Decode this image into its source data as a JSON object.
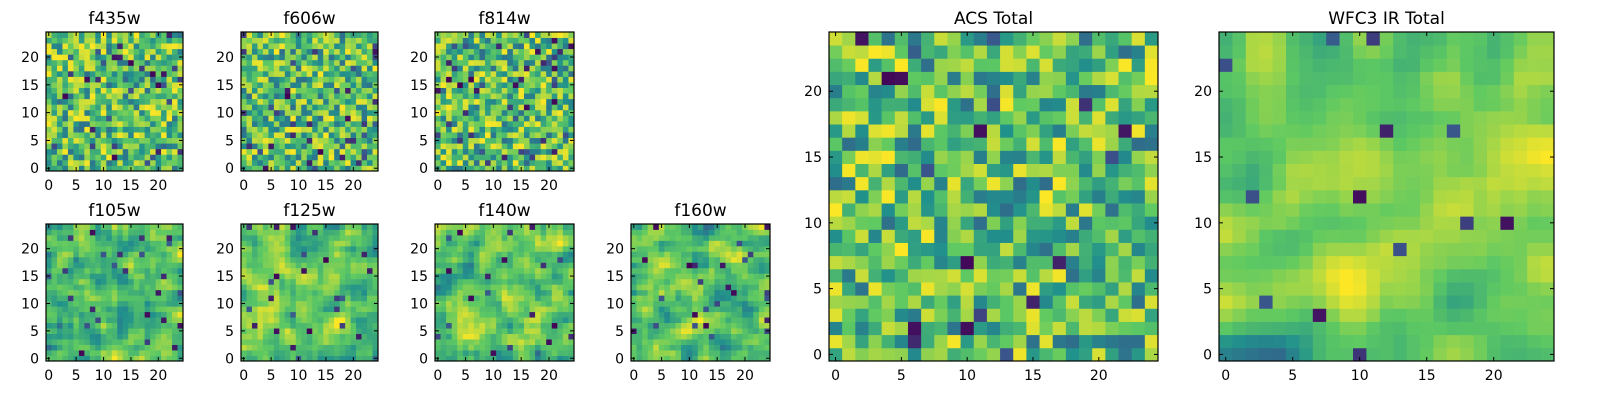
{
  "figure": {
    "colormap": "viridis",
    "colors": [
      "#440154",
      "#3b528b",
      "#21918c",
      "#5ec962",
      "#fde725"
    ]
  },
  "chart_data": [
    {
      "type": "heatmap",
      "title": "f435w",
      "grid_size": 25,
      "xticks": [
        "0",
        "5",
        "10",
        "15",
        "20"
      ],
      "yticks": [
        "0",
        "5",
        "10",
        "15",
        "20"
      ],
      "seed": 11,
      "smooth": 0,
      "dark_fraction": 0.05,
      "value_range": [
        0,
        1
      ]
    },
    {
      "type": "heatmap",
      "title": "f606w",
      "grid_size": 25,
      "xticks": [
        "0",
        "5",
        "10",
        "15",
        "20"
      ],
      "yticks": [
        "0",
        "5",
        "10",
        "15",
        "20"
      ],
      "seed": 23,
      "smooth": 0,
      "dark_fraction": 0.06,
      "value_range": [
        0,
        1
      ]
    },
    {
      "type": "heatmap",
      "title": "f814w",
      "grid_size": 25,
      "xticks": [
        "0",
        "5",
        "10",
        "15",
        "20"
      ],
      "yticks": [
        "0",
        "5",
        "10",
        "15",
        "20"
      ],
      "seed": 37,
      "smooth": 0,
      "dark_fraction": 0.07,
      "value_range": [
        0,
        1
      ]
    },
    {
      "type": "heatmap",
      "title": "f105w",
      "grid_size": 25,
      "xticks": [
        "0",
        "5",
        "10",
        "15",
        "20"
      ],
      "yticks": [
        "0",
        "5",
        "10",
        "15",
        "20"
      ],
      "seed": 41,
      "smooth": 1,
      "dark_fraction": 0.04,
      "value_range": [
        0,
        1
      ]
    },
    {
      "type": "heatmap",
      "title": "f125w",
      "grid_size": 25,
      "xticks": [
        "0",
        "5",
        "10",
        "15",
        "20"
      ],
      "yticks": [
        "0",
        "5",
        "10",
        "15",
        "20"
      ],
      "seed": 53,
      "smooth": 1,
      "dark_fraction": 0.04,
      "value_range": [
        0,
        1
      ]
    },
    {
      "type": "heatmap",
      "title": "f140w",
      "grid_size": 25,
      "xticks": [
        "0",
        "5",
        "10",
        "15",
        "20"
      ],
      "yticks": [
        "0",
        "5",
        "10",
        "15",
        "20"
      ],
      "seed": 67,
      "smooth": 1,
      "dark_fraction": 0.03,
      "value_range": [
        0,
        1
      ]
    },
    {
      "type": "heatmap",
      "title": "f160w",
      "grid_size": 25,
      "xticks": [
        "0",
        "5",
        "10",
        "15",
        "20"
      ],
      "yticks": [
        "0",
        "5",
        "10",
        "15",
        "20"
      ],
      "seed": 71,
      "smooth": 1,
      "dark_fraction": 0.04,
      "value_range": [
        0,
        1
      ]
    },
    {
      "type": "heatmap",
      "title": "ACS Total",
      "grid_size": 25,
      "xticks": [
        "0",
        "5",
        "10",
        "15",
        "20"
      ],
      "yticks": [
        "0",
        "5",
        "10",
        "15",
        "20"
      ],
      "seed": 83,
      "smooth": 0,
      "dark_fraction": 0.03,
      "value_range": [
        0,
        1
      ]
    },
    {
      "type": "heatmap",
      "title": "WFC3 IR Total",
      "grid_size": 25,
      "xticks": [
        "0",
        "5",
        "10",
        "15",
        "20"
      ],
      "yticks": [
        "0",
        "5",
        "10",
        "15",
        "20"
      ],
      "seed": 97,
      "smooth": 2,
      "dark_fraction": 0.02,
      "value_range": [
        0,
        1
      ]
    }
  ]
}
